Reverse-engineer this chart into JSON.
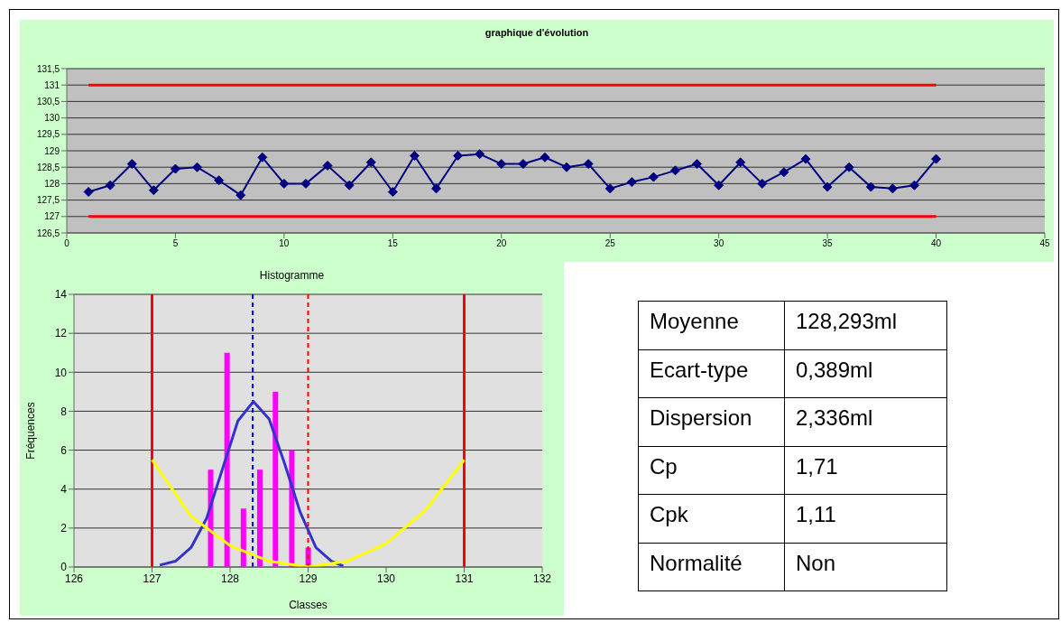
{
  "chart_data": [
    {
      "type": "line",
      "title": "graphique d'évolution",
      "x": [
        1,
        2,
        3,
        4,
        5,
        6,
        7,
        8,
        9,
        10,
        11,
        12,
        13,
        14,
        15,
        16,
        17,
        18,
        19,
        20,
        21,
        22,
        23,
        24,
        25,
        26,
        27,
        28,
        29,
        30,
        31,
        32,
        33,
        34,
        35,
        36,
        37,
        38,
        39,
        40
      ],
      "series": [
        {
          "color": "#000080",
          "marker": "diamond",
          "values": [
            127.75,
            127.95,
            128.6,
            127.8,
            128.45,
            128.5,
            128.1,
            127.65,
            128.8,
            128.0,
            128.0,
            128.55,
            127.95,
            128.65,
            127.75,
            128.85,
            127.85,
            128.85,
            128.9,
            128.6,
            128.6,
            128.8,
            128.5,
            128.6,
            127.85,
            128.05,
            128.2,
            128.4,
            128.6,
            127.95,
            128.65,
            128.0,
            128.35,
            128.75,
            127.9,
            128.5,
            127.9,
            127.85,
            127.95,
            128.75
          ]
        },
        {
          "color": "#ff0000",
          "marker": "none",
          "x": [
            1,
            40
          ],
          "values": [
            131,
            131
          ]
        },
        {
          "color": "#ff0000",
          "marker": "none",
          "x": [
            1,
            40
          ],
          "values": [
            127,
            127
          ]
        }
      ],
      "xlim": [
        0,
        45
      ],
      "xticks": [
        0,
        5,
        10,
        15,
        20,
        25,
        30,
        35,
        40,
        45
      ],
      "ylim": [
        126.5,
        131.5
      ],
      "yticks": [
        {
          "value": 126.5,
          "label": "126,5"
        },
        127,
        {
          "value": 127.5,
          "label": "127,5"
        },
        128,
        {
          "value": 128.5,
          "label": "128,5"
        },
        129,
        {
          "value": 129.5,
          "label": "129,5"
        },
        130,
        {
          "value": 130.5,
          "label": "130,5"
        },
        131,
        {
          "value": 131.5,
          "label": "131,5"
        }
      ],
      "grid": "y",
      "legend": false
    },
    {
      "type": "bar",
      "title": "Histogramme",
      "xlabel": "Classes",
      "ylabel": "Fréquences",
      "series": [
        {
          "type": "bar",
          "color": "#ff00ff",
          "x": [
            127.75,
            127.96,
            128.17,
            128.38,
            128.58,
            128.79,
            129.0
          ],
          "values": [
            5,
            11,
            3,
            5,
            9,
            6,
            1
          ]
        },
        {
          "type": "line",
          "color": "#3333cc",
          "x": [
            127.1,
            127.3,
            127.5,
            127.7,
            127.9,
            128.1,
            128.3,
            128.5,
            128.7,
            128.9,
            129.1,
            129.3,
            129.45
          ],
          "values": [
            0.1,
            0.3,
            1.0,
            2.5,
            5.0,
            7.5,
            8.5,
            7.6,
            5.3,
            2.8,
            1.0,
            0.3,
            0.05
          ]
        },
        {
          "type": "line",
          "color": "#ffff00",
          "x": [
            127,
            127.5,
            128,
            128.5,
            129,
            129.5,
            130,
            130.5,
            131
          ],
          "values": [
            5.5,
            2.6,
            1.1,
            0.3,
            0,
            0.3,
            1.2,
            2.9,
            5.5
          ]
        }
      ],
      "ref_lines": [
        {
          "axis": "x",
          "value": 127,
          "color": "#ff0000",
          "line_style": "solid"
        },
        {
          "axis": "x",
          "value": 131,
          "color": "#ff0000",
          "line_style": "solid"
        },
        {
          "axis": "x",
          "value": 128.29,
          "color": "#0000ff",
          "line_style": "dashed"
        },
        {
          "axis": "x",
          "value": 129,
          "color": "#ff0000",
          "line_style": "dashed"
        }
      ],
      "xlim": [
        126,
        132
      ],
      "xticks": [
        126,
        127,
        128,
        129,
        130,
        131,
        132
      ],
      "ylim": [
        0,
        14
      ],
      "yticks": [
        0,
        2,
        4,
        6,
        8,
        10,
        12,
        14
      ],
      "grid": "y",
      "legend": false,
      "marker": "none"
    },
    {
      "type": "other",
      "annotations": [
        "Moyenne",
        "128,293ml",
        "Ecart-type",
        "0,389ml",
        "Dispersion",
        "2,336ml",
        "Cp",
        "1,71",
        "Cpk",
        "1,11",
        "Normalité",
        "Non"
      ]
    }
  ]
}
